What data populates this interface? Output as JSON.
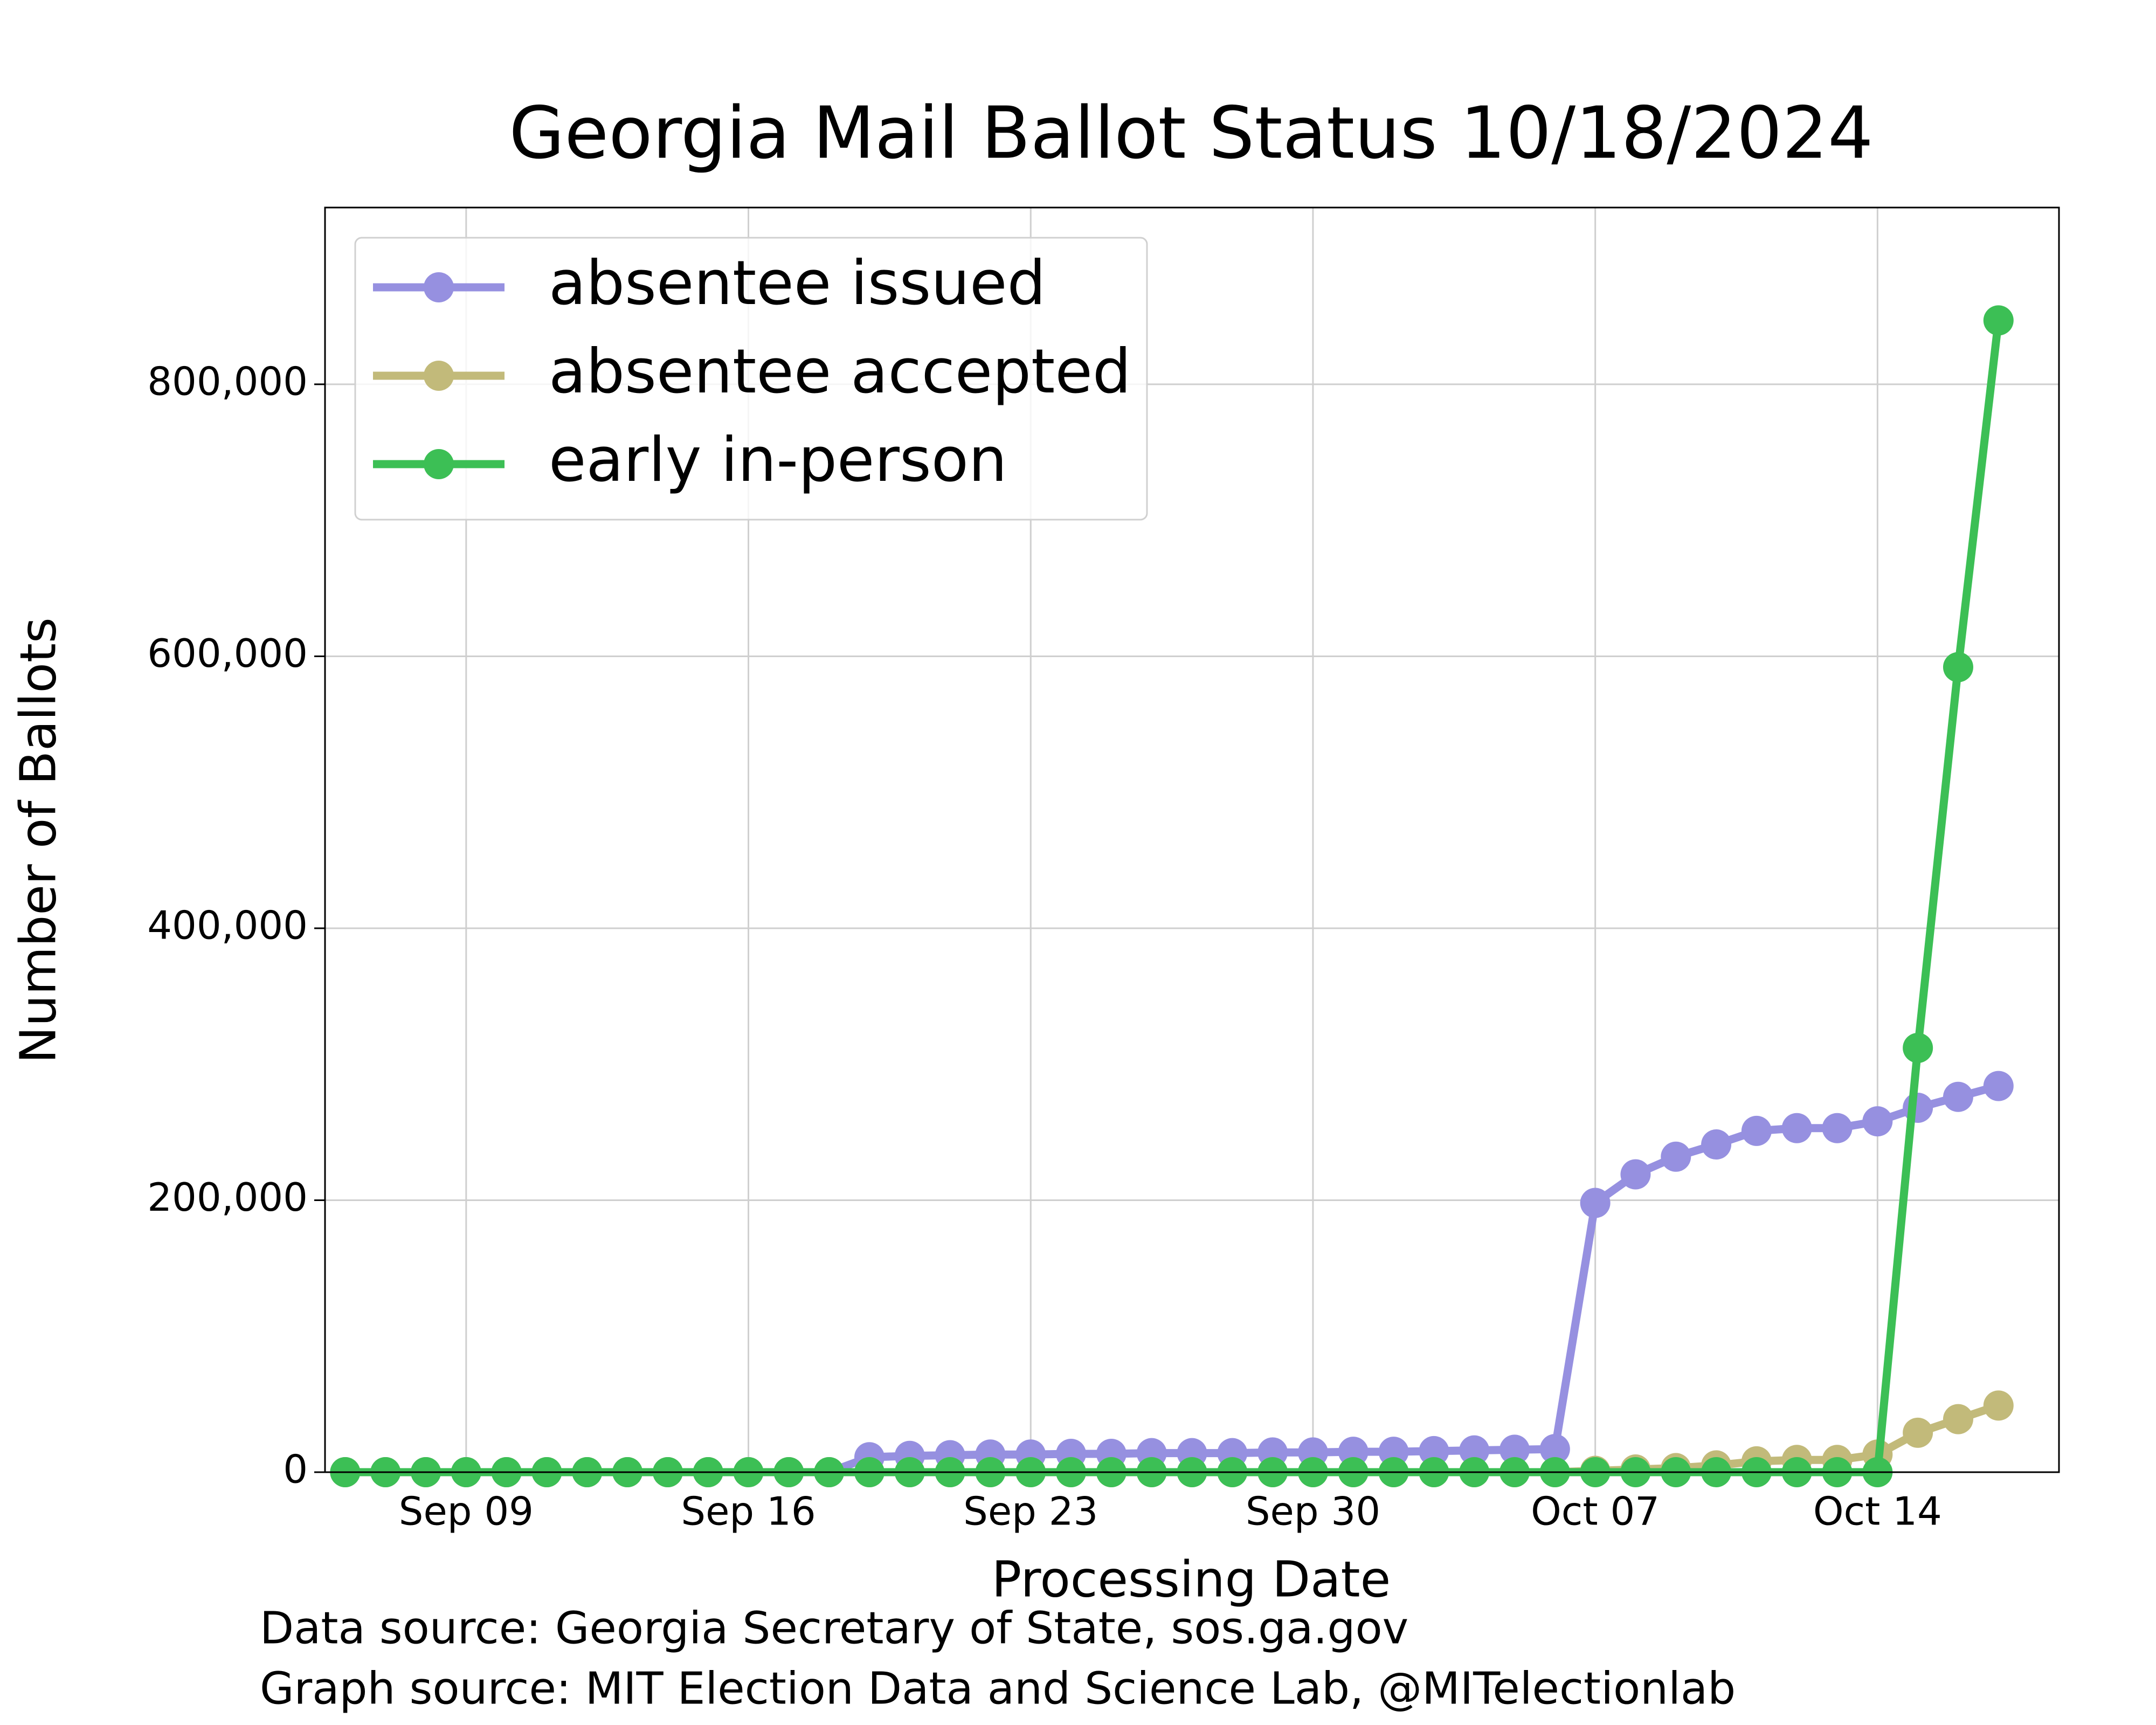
{
  "chart_data": {
    "type": "line",
    "title": "Georgia Mail Ballot Status 10/18/2024",
    "xlabel": "Processing Date",
    "ylabel": "Number of Ballots",
    "annotations": [
      "Data source: Georgia Secretary of State, sos.ga.gov",
      "Graph source: MIT Election Data and Science Lab, @MITelectionlab"
    ],
    "x": [
      "09-06",
      "09-07",
      "09-08",
      "09-09",
      "09-10",
      "09-11",
      "09-12",
      "09-13",
      "09-14",
      "09-15",
      "09-16",
      "09-17",
      "09-18",
      "09-19",
      "09-20",
      "09-21",
      "09-22",
      "09-23",
      "09-24",
      "09-25",
      "09-26",
      "09-27",
      "09-28",
      "09-29",
      "09-30",
      "10-01",
      "10-02",
      "10-03",
      "10-04",
      "10-05",
      "10-06",
      "10-07",
      "10-08",
      "10-09",
      "10-10",
      "10-11",
      "10-12",
      "10-13",
      "10-14",
      "10-15",
      "10-16",
      "10-17"
    ],
    "series": [
      {
        "name": "absentee issued",
        "color": "#9690e0",
        "values": [
          0,
          0,
          0,
          0,
          0,
          0,
          0,
          0,
          0,
          0,
          0,
          0,
          0,
          11000,
          12000,
          12500,
          13000,
          13000,
          13500,
          13500,
          14000,
          14000,
          14000,
          14500,
          14500,
          15000,
          15000,
          15500,
          16000,
          16500,
          17000,
          198000,
          219000,
          232000,
          241000,
          251000,
          253000,
          253000,
          258000,
          268000,
          276000,
          284000
        ]
      },
      {
        "name": "absentee accepted",
        "color": "#c2ba7a",
        "values": [
          0,
          0,
          0,
          0,
          0,
          0,
          0,
          0,
          0,
          0,
          0,
          0,
          0,
          0,
          0,
          0,
          0,
          0,
          0,
          0,
          0,
          0,
          0,
          0,
          0,
          0,
          0,
          0,
          0,
          0,
          0,
          1000,
          2000,
          3000,
          5000,
          8000,
          9000,
          9000,
          13000,
          29000,
          39000,
          49000
        ]
      },
      {
        "name": "early in-person",
        "color": "#3cbf55",
        "values": [
          0,
          0,
          0,
          0,
          0,
          0,
          0,
          0,
          0,
          0,
          0,
          0,
          0,
          0,
          0,
          0,
          0,
          0,
          0,
          0,
          0,
          0,
          0,
          0,
          0,
          0,
          0,
          0,
          0,
          0,
          0,
          0,
          0,
          0,
          0,
          0,
          0,
          0,
          0,
          312000,
          592000,
          847000
        ]
      }
    ],
    "xlim": [
      "09-05T12:00",
      "10-18T12:00"
    ],
    "xticks": [
      {
        "value": "09-09",
        "label": "Sep 09"
      },
      {
        "value": "09-16",
        "label": "Sep 16"
      },
      {
        "value": "09-23",
        "label": "Sep 23"
      },
      {
        "value": "09-30",
        "label": "Sep 30"
      },
      {
        "value": "10-07",
        "label": "Oct 07"
      },
      {
        "value": "10-14",
        "label": "Oct 14"
      }
    ],
    "ylim": [
      0,
      930000
    ],
    "yticks": [
      0,
      {
        "value": 200000,
        "label": "200,000"
      },
      {
        "value": 400000,
        "label": "400,000"
      },
      {
        "value": 600000,
        "label": "600,000"
      },
      {
        "value": 800000,
        "label": "800,000"
      }
    ],
    "grid": true,
    "legend": "upper left"
  }
}
